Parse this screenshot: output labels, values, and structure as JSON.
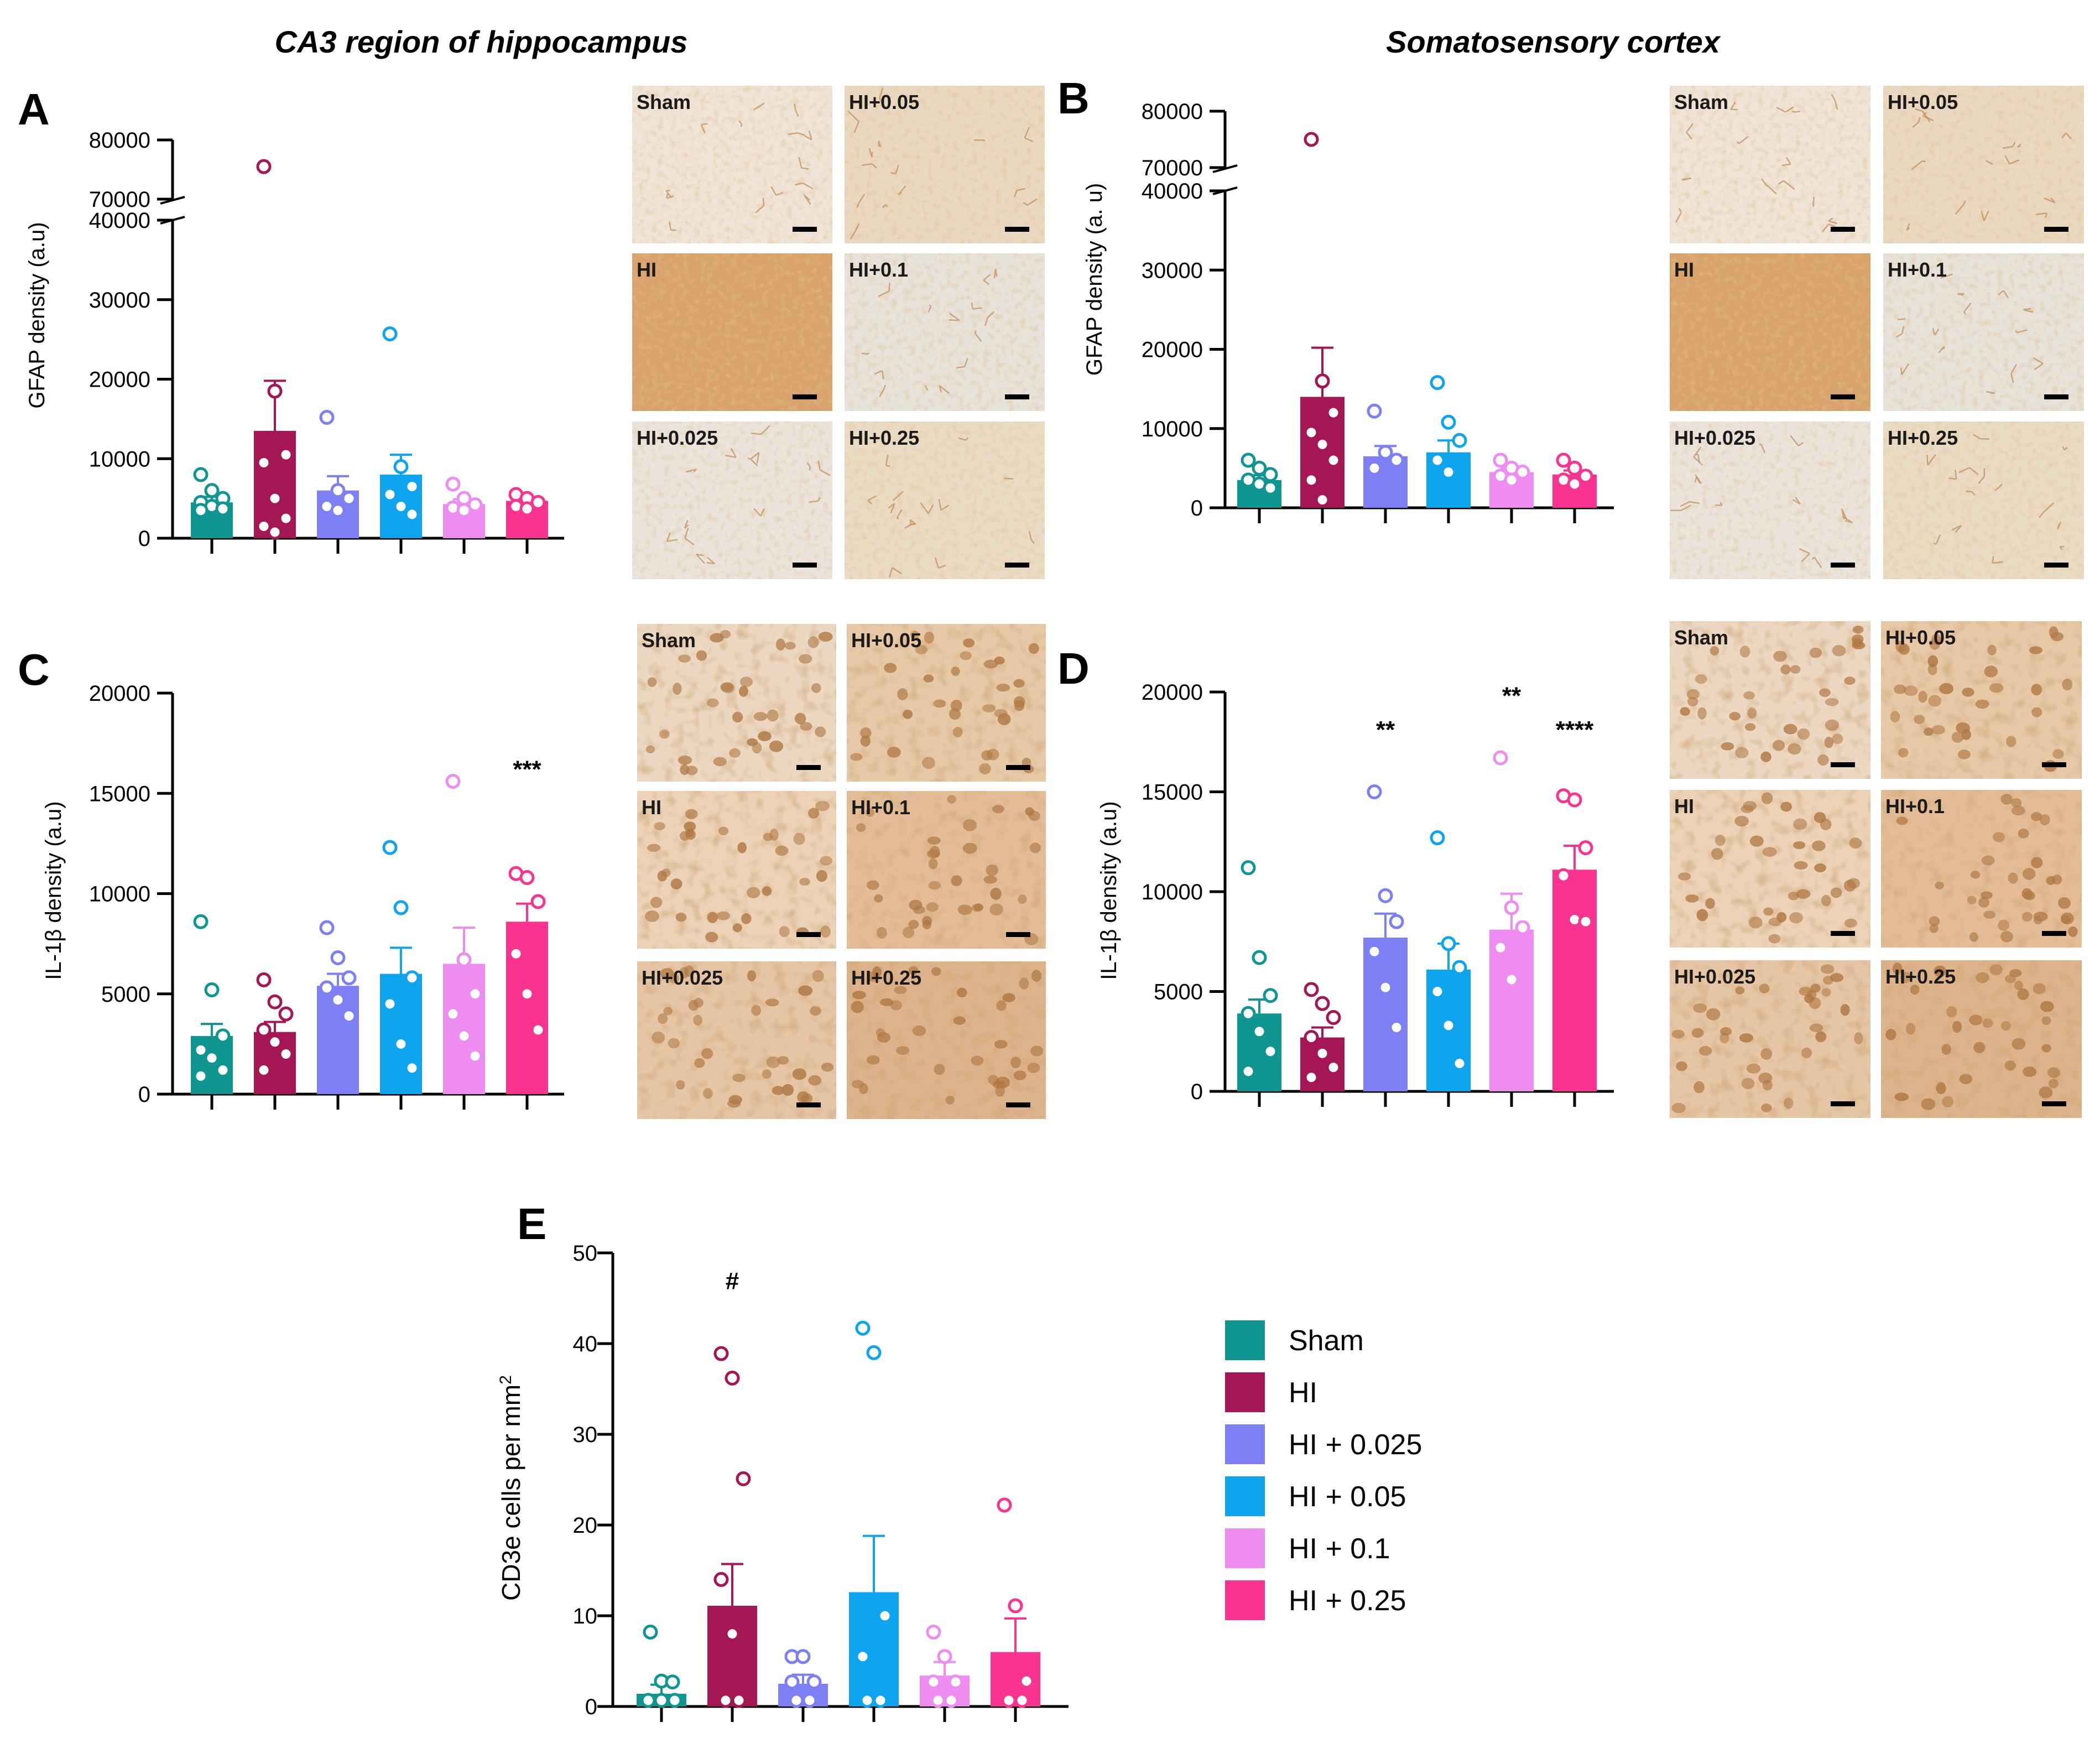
{
  "titles": {
    "left": "CA3 region of hippocampus",
    "right": "Somatosensory cortex"
  },
  "groups": [
    "Sham",
    "HI",
    "HI + 0.025",
    "HI + 0.05",
    "HI + 0.1",
    "HI + 0.25"
  ],
  "colors": [
    "#0f9690",
    "#a51655",
    "#7d7ff5",
    "#0ea5ee",
    "#ef8cf1",
    "#f9338e"
  ],
  "legend": {
    "items": [
      "Sham",
      "HI",
      "HI + 0.025",
      "HI + 0.05",
      "HI + 0.1",
      "HI + 0.25"
    ]
  },
  "micro_labels": [
    "Sham",
    "HI+0.05",
    "HI",
    "HI+0.1",
    "HI+0.025",
    "HI+0.25"
  ],
  "chart_data": [
    {
      "panel": "A",
      "type": "bar",
      "ylabel": "GFAP density (a.u)",
      "broken_axis": true,
      "upper_range": [
        70000,
        80000
      ],
      "lower_range": [
        0,
        40000
      ],
      "upper_ticks": [
        "80000",
        "70000"
      ],
      "lower_ticks": [
        "40000",
        "30000",
        "20000",
        "10000",
        "0"
      ],
      "categories": [
        "Sham",
        "HI",
        "HI + 0.025",
        "HI + 0.05",
        "HI + 0.1",
        "HI + 0.25"
      ],
      "values": [
        4500,
        13500,
        6000,
        8000,
        4300,
        4700
      ],
      "errors": [
        700,
        6300,
        1800,
        2500,
        600,
        400
      ],
      "points": [
        [
          8000,
          6000,
          5000,
          4500,
          4000,
          3700,
          3500
        ],
        [
          75500,
          18500,
          10500,
          9500,
          5000,
          2500,
          1500,
          500
        ],
        [
          15200,
          6000,
          5000,
          4000,
          3500
        ],
        [
          25700,
          9000,
          6500,
          5500,
          4000,
          3000
        ],
        [
          6800,
          5000,
          4200,
          3800,
          3500
        ],
        [
          5500,
          5000,
          4500,
          4000,
          3700
        ]
      ],
      "significance": [
        "",
        "",
        "",
        "",
        "",
        ""
      ]
    },
    {
      "panel": "B",
      "type": "bar",
      "ylabel": "GFAP density (a. u)",
      "broken_axis": true,
      "upper_range": [
        70000,
        80000
      ],
      "lower_range": [
        0,
        40000
      ],
      "upper_ticks": [
        "80000",
        "70000"
      ],
      "lower_ticks": [
        "40000",
        "30000",
        "20000",
        "10000",
        "0"
      ],
      "categories": [
        "Sham",
        "HI",
        "HI + 0.025",
        "HI + 0.05",
        "HI + 0.1",
        "HI + 0.25"
      ],
      "values": [
        3500,
        14000,
        6500,
        7000,
        4500,
        4200
      ],
      "errors": [
        600,
        6200,
        1300,
        1500,
        500,
        500
      ],
      "points": [
        [
          6000,
          5000,
          4200,
          3500,
          3000,
          2500
        ],
        [
          75000,
          16000,
          12000,
          9500,
          8000,
          6000,
          3500,
          1000
        ],
        [
          12200,
          7000,
          6000,
          5000
        ],
        [
          15800,
          10800,
          8500,
          6000,
          4500
        ],
        [
          6000,
          5000,
          4500,
          4000,
          3500
        ],
        [
          6000,
          5000,
          4000,
          3500,
          3000
        ]
      ],
      "significance": [
        "",
        "",
        "",
        "",
        "",
        ""
      ]
    },
    {
      "panel": "C",
      "type": "bar",
      "ylabel": "IL-1β density (a.u)",
      "ylim": [
        0,
        20000
      ],
      "ticks": [
        "20000",
        "15000",
        "10000",
        "5000",
        "0"
      ],
      "categories": [
        "Sham",
        "HI",
        "HI + 0.025",
        "HI + 0.05",
        "HI + 0.1",
        "HI + 0.25"
      ],
      "values": [
        2900,
        3100,
        5400,
        6000,
        6500,
        8600
      ],
      "errors": [
        600,
        500,
        600,
        1300,
        1800,
        900
      ],
      "points": [
        [
          8600,
          5200,
          2900,
          2200,
          1800,
          1200,
          900
        ],
        [
          5700,
          4600,
          4000,
          3200,
          2600,
          2000,
          1200
        ],
        [
          8300,
          6800,
          5800,
          5300,
          4700,
          3900
        ],
        [
          12300,
          9300,
          5800,
          4500,
          2500,
          1300
        ],
        [
          15600,
          6700,
          5000,
          4000,
          2900,
          1900
        ],
        [
          11000,
          10800,
          9600,
          7000,
          5000,
          3200
        ]
      ],
      "significance": [
        "",
        "",
        "",
        "",
        "",
        "***"
      ]
    },
    {
      "panel": "D",
      "type": "bar",
      "ylabel": "IL-1β density (a.u)",
      "ylim": [
        0,
        20000
      ],
      "ticks": [
        "20000",
        "15000",
        "10000",
        "5000",
        "0"
      ],
      "categories": [
        "Sham",
        "HI",
        "HI + 0.025",
        "HI + 0.05",
        "HI + 0.1",
        "HI + 0.25"
      ],
      "values": [
        3900,
        2700,
        7700,
        6100,
        8100,
        11100
      ],
      "errors": [
        700,
        500,
        1200,
        1300,
        1800,
        1200
      ],
      "points": [
        [
          11200,
          6700,
          4800,
          3900,
          3000,
          2000,
          1000
        ],
        [
          5100,
          4400,
          3700,
          2700,
          1900,
          1200,
          700
        ],
        [
          15000,
          9800,
          8500,
          7000,
          5200,
          3200
        ],
        [
          12700,
          7400,
          6200,
          5000,
          3300,
          1400
        ],
        [
          16700,
          9200,
          8200,
          7200,
          5600
        ],
        [
          14800,
          14600,
          12200,
          10800,
          8600,
          8500
        ]
      ],
      "significance": [
        "",
        "",
        "**",
        "",
        "**",
        "****"
      ]
    },
    {
      "panel": "E",
      "type": "bar",
      "ylabel": "CD3e cells per mm2",
      "ylim": [
        0,
        50
      ],
      "ticks": [
        "50",
        "40",
        "30",
        "20",
        "10",
        "0"
      ],
      "categories": [
        "Sham",
        "HI",
        "HI + 0.025",
        "HI + 0.05",
        "HI + 0.1",
        "HI + 0.25"
      ],
      "values": [
        1.4,
        11.1,
        2.5,
        12.6,
        3.4,
        6.0
      ],
      "errors": [
        1.0,
        4.6,
        1.0,
        6.2,
        1.5,
        3.7
      ],
      "points": [
        [
          8.2,
          2.8,
          2.7,
          0,
          0,
          0
        ],
        [
          38.9,
          36.2,
          25.1,
          14.0,
          8.0,
          0,
          0
        ],
        [
          5.5,
          5.5,
          2.7,
          2.7,
          0,
          0
        ],
        [
          41.7,
          39.0,
          10.0,
          5.5,
          0,
          0
        ],
        [
          8.2,
          5.5,
          2.7,
          2.7,
          0,
          0
        ],
        [
          22.2,
          11.1,
          2.8,
          0,
          0
        ]
      ],
      "significance": [
        "",
        "#",
        "",
        "",
        "",
        ""
      ]
    }
  ],
  "panel_labels": [
    "A",
    "B",
    "C",
    "D",
    "E"
  ]
}
